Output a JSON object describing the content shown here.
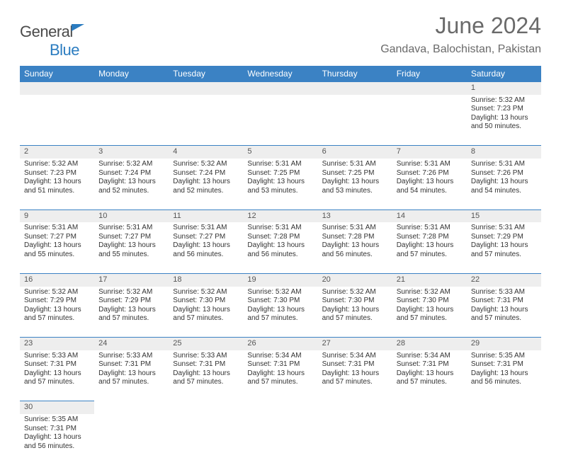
{
  "brand": {
    "part1": "General",
    "part2": "Blue"
  },
  "title": "June 2024",
  "location": "Gandava, Balochistan, Pakistan",
  "colors": {
    "header_bg": "#3b82c4",
    "header_text": "#ffffff",
    "daynum_bg": "#eeeeee",
    "rule": "#3b82c4",
    "body_text": "#333333",
    "title_text": "#6a6a6a"
  },
  "weekdays": [
    "Sunday",
    "Monday",
    "Tuesday",
    "Wednesday",
    "Thursday",
    "Friday",
    "Saturday"
  ],
  "weeks": [
    {
      "nums": [
        "",
        "",
        "",
        "",
        "",
        "",
        "1"
      ],
      "cells": [
        null,
        null,
        null,
        null,
        null,
        null,
        {
          "sr": "Sunrise: 5:32 AM",
          "ss": "Sunset: 7:23 PM",
          "d1": "Daylight: 13 hours",
          "d2": "and 50 minutes."
        }
      ]
    },
    {
      "nums": [
        "2",
        "3",
        "4",
        "5",
        "6",
        "7",
        "8"
      ],
      "cells": [
        {
          "sr": "Sunrise: 5:32 AM",
          "ss": "Sunset: 7:23 PM",
          "d1": "Daylight: 13 hours",
          "d2": "and 51 minutes."
        },
        {
          "sr": "Sunrise: 5:32 AM",
          "ss": "Sunset: 7:24 PM",
          "d1": "Daylight: 13 hours",
          "d2": "and 52 minutes."
        },
        {
          "sr": "Sunrise: 5:32 AM",
          "ss": "Sunset: 7:24 PM",
          "d1": "Daylight: 13 hours",
          "d2": "and 52 minutes."
        },
        {
          "sr": "Sunrise: 5:31 AM",
          "ss": "Sunset: 7:25 PM",
          "d1": "Daylight: 13 hours",
          "d2": "and 53 minutes."
        },
        {
          "sr": "Sunrise: 5:31 AM",
          "ss": "Sunset: 7:25 PM",
          "d1": "Daylight: 13 hours",
          "d2": "and 53 minutes."
        },
        {
          "sr": "Sunrise: 5:31 AM",
          "ss": "Sunset: 7:26 PM",
          "d1": "Daylight: 13 hours",
          "d2": "and 54 minutes."
        },
        {
          "sr": "Sunrise: 5:31 AM",
          "ss": "Sunset: 7:26 PM",
          "d1": "Daylight: 13 hours",
          "d2": "and 54 minutes."
        }
      ]
    },
    {
      "nums": [
        "9",
        "10",
        "11",
        "12",
        "13",
        "14",
        "15"
      ],
      "cells": [
        {
          "sr": "Sunrise: 5:31 AM",
          "ss": "Sunset: 7:27 PM",
          "d1": "Daylight: 13 hours",
          "d2": "and 55 minutes."
        },
        {
          "sr": "Sunrise: 5:31 AM",
          "ss": "Sunset: 7:27 PM",
          "d1": "Daylight: 13 hours",
          "d2": "and 55 minutes."
        },
        {
          "sr": "Sunrise: 5:31 AM",
          "ss": "Sunset: 7:27 PM",
          "d1": "Daylight: 13 hours",
          "d2": "and 56 minutes."
        },
        {
          "sr": "Sunrise: 5:31 AM",
          "ss": "Sunset: 7:28 PM",
          "d1": "Daylight: 13 hours",
          "d2": "and 56 minutes."
        },
        {
          "sr": "Sunrise: 5:31 AM",
          "ss": "Sunset: 7:28 PM",
          "d1": "Daylight: 13 hours",
          "d2": "and 56 minutes."
        },
        {
          "sr": "Sunrise: 5:31 AM",
          "ss": "Sunset: 7:28 PM",
          "d1": "Daylight: 13 hours",
          "d2": "and 57 minutes."
        },
        {
          "sr": "Sunrise: 5:31 AM",
          "ss": "Sunset: 7:29 PM",
          "d1": "Daylight: 13 hours",
          "d2": "and 57 minutes."
        }
      ]
    },
    {
      "nums": [
        "16",
        "17",
        "18",
        "19",
        "20",
        "21",
        "22"
      ],
      "cells": [
        {
          "sr": "Sunrise: 5:32 AM",
          "ss": "Sunset: 7:29 PM",
          "d1": "Daylight: 13 hours",
          "d2": "and 57 minutes."
        },
        {
          "sr": "Sunrise: 5:32 AM",
          "ss": "Sunset: 7:29 PM",
          "d1": "Daylight: 13 hours",
          "d2": "and 57 minutes."
        },
        {
          "sr": "Sunrise: 5:32 AM",
          "ss": "Sunset: 7:30 PM",
          "d1": "Daylight: 13 hours",
          "d2": "and 57 minutes."
        },
        {
          "sr": "Sunrise: 5:32 AM",
          "ss": "Sunset: 7:30 PM",
          "d1": "Daylight: 13 hours",
          "d2": "and 57 minutes."
        },
        {
          "sr": "Sunrise: 5:32 AM",
          "ss": "Sunset: 7:30 PM",
          "d1": "Daylight: 13 hours",
          "d2": "and 57 minutes."
        },
        {
          "sr": "Sunrise: 5:32 AM",
          "ss": "Sunset: 7:30 PM",
          "d1": "Daylight: 13 hours",
          "d2": "and 57 minutes."
        },
        {
          "sr": "Sunrise: 5:33 AM",
          "ss": "Sunset: 7:31 PM",
          "d1": "Daylight: 13 hours",
          "d2": "and 57 minutes."
        }
      ]
    },
    {
      "nums": [
        "23",
        "24",
        "25",
        "26",
        "27",
        "28",
        "29"
      ],
      "cells": [
        {
          "sr": "Sunrise: 5:33 AM",
          "ss": "Sunset: 7:31 PM",
          "d1": "Daylight: 13 hours",
          "d2": "and 57 minutes."
        },
        {
          "sr": "Sunrise: 5:33 AM",
          "ss": "Sunset: 7:31 PM",
          "d1": "Daylight: 13 hours",
          "d2": "and 57 minutes."
        },
        {
          "sr": "Sunrise: 5:33 AM",
          "ss": "Sunset: 7:31 PM",
          "d1": "Daylight: 13 hours",
          "d2": "and 57 minutes."
        },
        {
          "sr": "Sunrise: 5:34 AM",
          "ss": "Sunset: 7:31 PM",
          "d1": "Daylight: 13 hours",
          "d2": "and 57 minutes."
        },
        {
          "sr": "Sunrise: 5:34 AM",
          "ss": "Sunset: 7:31 PM",
          "d1": "Daylight: 13 hours",
          "d2": "and 57 minutes."
        },
        {
          "sr": "Sunrise: 5:34 AM",
          "ss": "Sunset: 7:31 PM",
          "d1": "Daylight: 13 hours",
          "d2": "and 57 minutes."
        },
        {
          "sr": "Sunrise: 5:35 AM",
          "ss": "Sunset: 7:31 PM",
          "d1": "Daylight: 13 hours",
          "d2": "and 56 minutes."
        }
      ]
    },
    {
      "nums": [
        "30",
        "",
        "",
        "",
        "",
        "",
        ""
      ],
      "cells": [
        {
          "sr": "Sunrise: 5:35 AM",
          "ss": "Sunset: 7:31 PM",
          "d1": "Daylight: 13 hours",
          "d2": "and 56 minutes."
        },
        null,
        null,
        null,
        null,
        null,
        null
      ]
    }
  ]
}
